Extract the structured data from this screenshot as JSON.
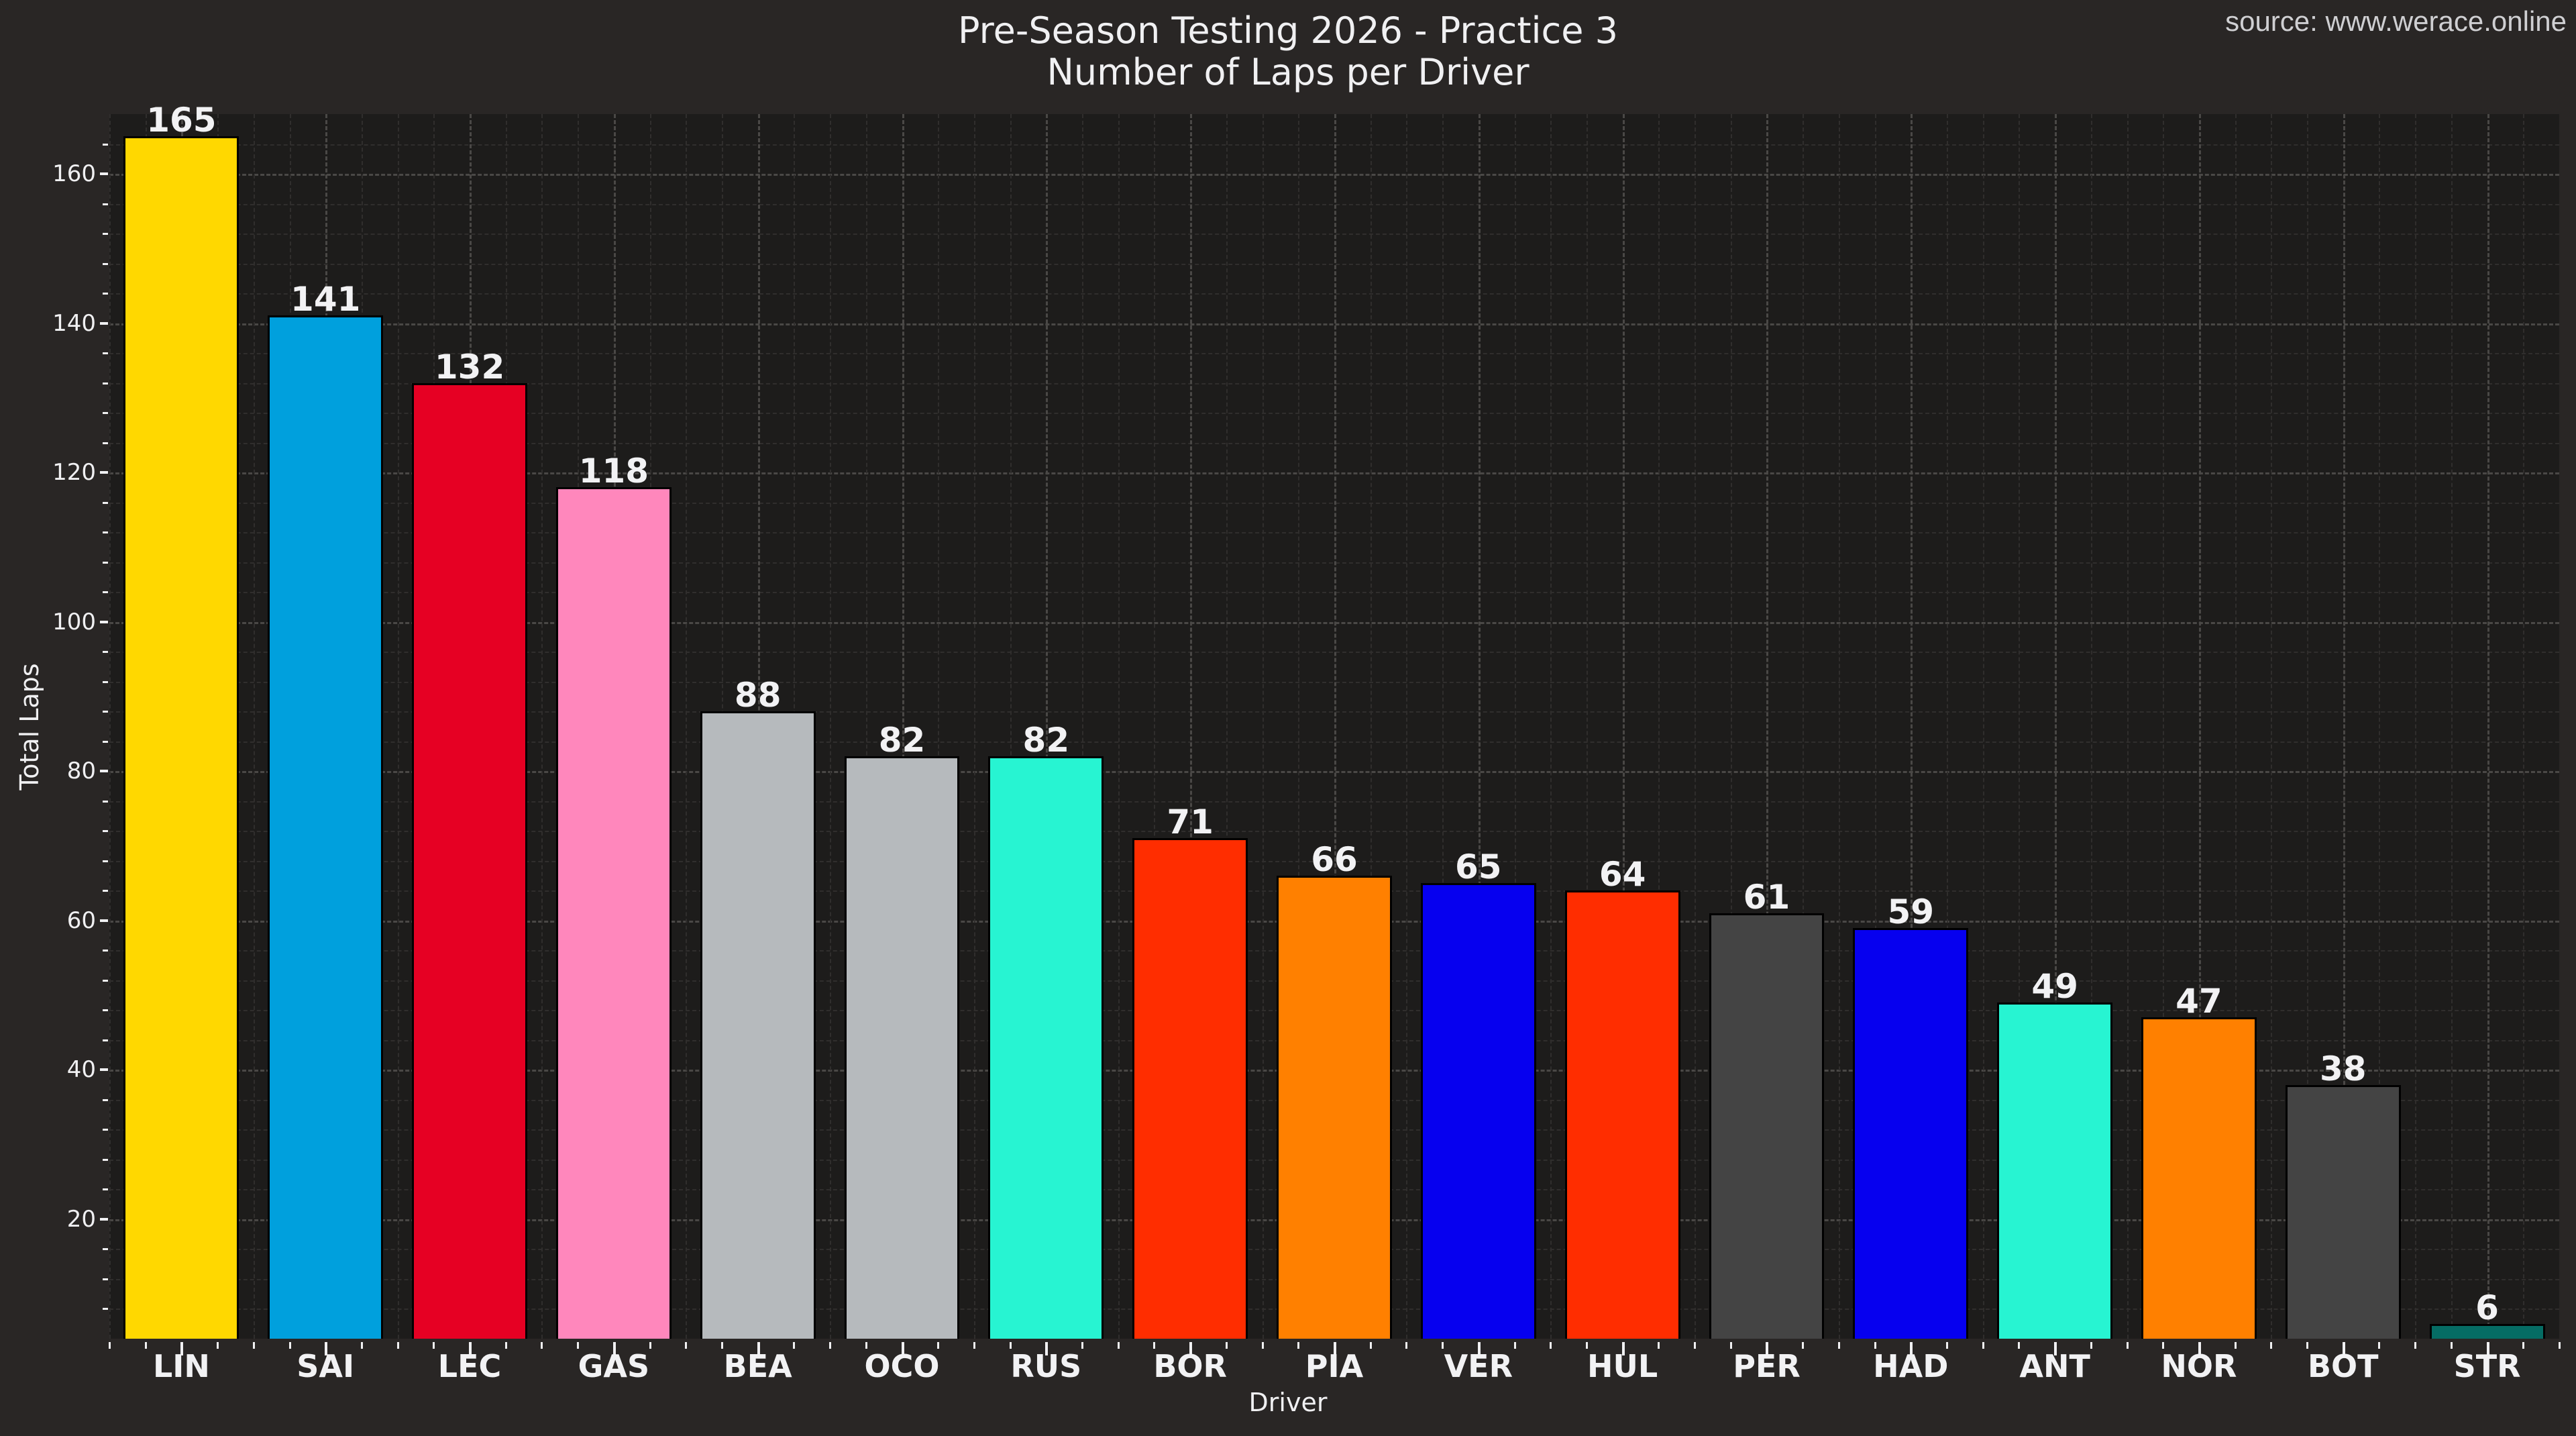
{
  "header": {
    "title": "Pre-Season Testing 2026 - Practice 3",
    "subtitle": "Number of Laps per Driver",
    "source": "source: www.werace.online"
  },
  "axes": {
    "x_title": "Driver",
    "y_title": "Total Laps",
    "y_ticks": [
      "20",
      "40",
      "60",
      "80",
      "100",
      "120",
      "140",
      "160"
    ]
  },
  "bars": [
    {
      "driver": "LIN",
      "laps": "165",
      "color": "#FFD800"
    },
    {
      "driver": "SAI",
      "laps": "141",
      "color": "#00A0DD"
    },
    {
      "driver": "LEC",
      "laps": "132",
      "color": "#E60023"
    },
    {
      "driver": "GAS",
      "laps": "118",
      "color": "#FF87BC"
    },
    {
      "driver": "BEA",
      "laps": "88",
      "color": "#B6BABD"
    },
    {
      "driver": "OCO",
      "laps": "82",
      "color": "#B6BABD"
    },
    {
      "driver": "RUS",
      "laps": "82",
      "color": "#27F4D2"
    },
    {
      "driver": "BOR",
      "laps": "71",
      "color": "#FF2D00"
    },
    {
      "driver": "PIA",
      "laps": "66",
      "color": "#FF8000"
    },
    {
      "driver": "VER",
      "laps": "65",
      "color": "#0600EF"
    },
    {
      "driver": "HUL",
      "laps": "64",
      "color": "#FF2D00"
    },
    {
      "driver": "PER",
      "laps": "61",
      "color": "#444444"
    },
    {
      "driver": "HAD",
      "laps": "59",
      "color": "#0600EF"
    },
    {
      "driver": "ANT",
      "laps": "49",
      "color": "#27F4D2"
    },
    {
      "driver": "NOR",
      "laps": "47",
      "color": "#FF8000"
    },
    {
      "driver": "BOT",
      "laps": "38",
      "color": "#444444"
    },
    {
      "driver": "STR",
      "laps": "6",
      "color": "#056C64"
    }
  ],
  "chart_data": {
    "type": "bar",
    "title": "Pre-Season Testing 2026 - Practice 3",
    "subtitle": "Number of Laps per Driver",
    "annotation": "source: www.werace.online",
    "xlabel": "Driver",
    "ylabel": "Total Laps",
    "categories": [
      "LIN",
      "SAI",
      "LEC",
      "GAS",
      "BEA",
      "OCO",
      "RUS",
      "BOR",
      "PIA",
      "VER",
      "HUL",
      "PER",
      "HAD",
      "ANT",
      "NOR",
      "BOT",
      "STR"
    ],
    "values": [
      165,
      141,
      132,
      118,
      88,
      82,
      82,
      71,
      66,
      65,
      64,
      61,
      59,
      49,
      47,
      38,
      6
    ],
    "colors": [
      "#FFD800",
      "#00A0DD",
      "#E60023",
      "#FF87BC",
      "#B6BABD",
      "#B6BABD",
      "#27F4D2",
      "#FF2D00",
      "#FF8000",
      "#0600EF",
      "#FF2D00",
      "#444444",
      "#0600EF",
      "#27F4D2",
      "#FF8000",
      "#444444",
      "#056C64"
    ],
    "ylim": [
      4,
      168
    ],
    "yticks": [
      20,
      40,
      60,
      80,
      100,
      120,
      140,
      160
    ],
    "grid": true,
    "legend": null,
    "data_labels": true,
    "theme": "dark"
  }
}
